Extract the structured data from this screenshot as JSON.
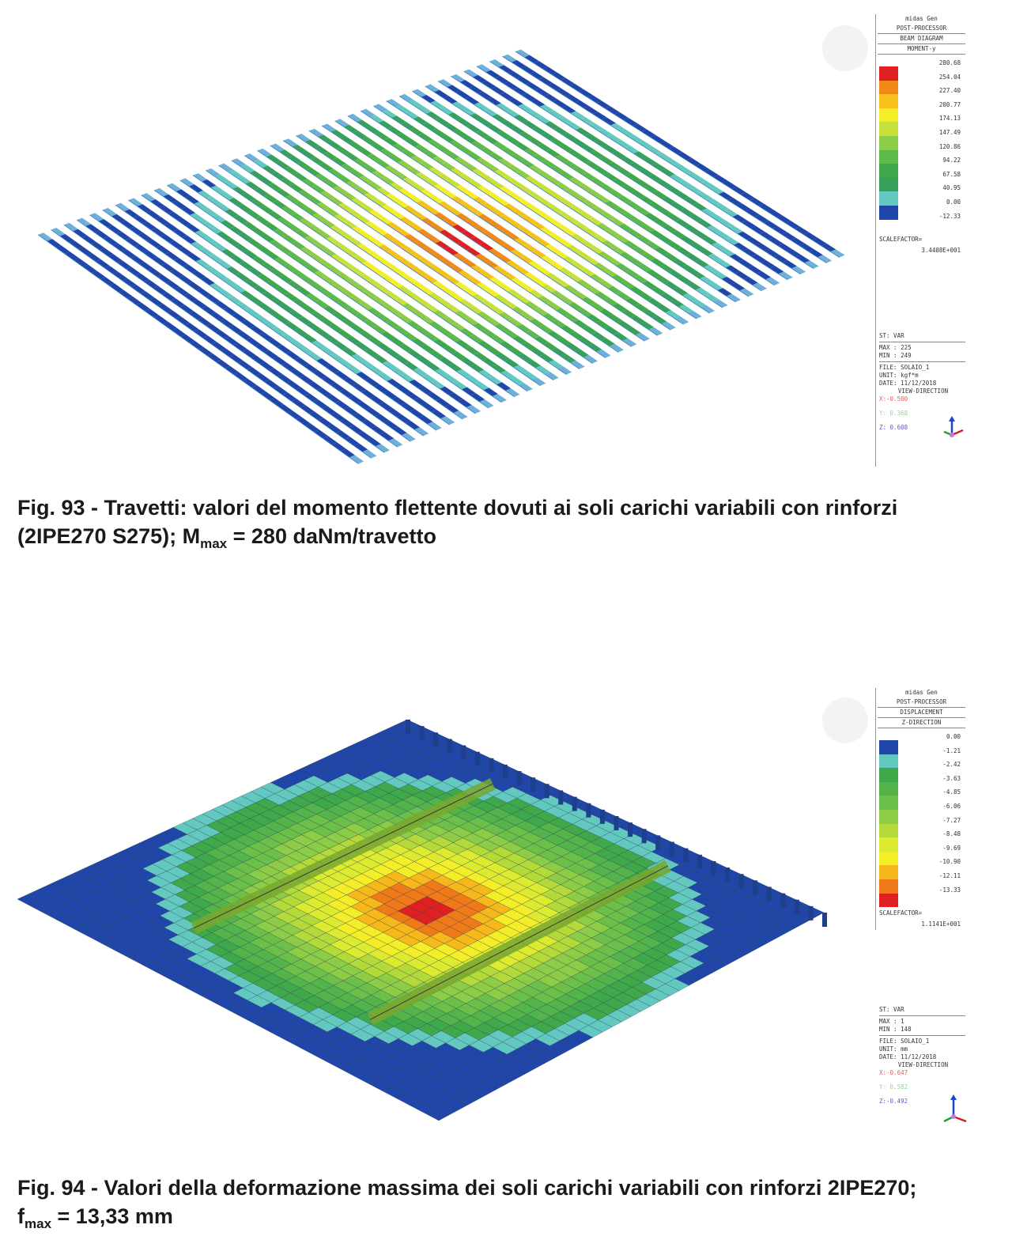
{
  "fig93": {
    "legend": {
      "program": "midas Gen",
      "module": "POST-PROCESSOR",
      "diagram": "BEAM DIAGRAM",
      "component": "MOMENT-y",
      "values": [
        "280.68",
        "254.04",
        "227.40",
        "200.77",
        "174.13",
        "147.49",
        "120.86",
        "94.22",
        "67.58",
        "40.95",
        "0.00",
        "-12.33"
      ],
      "colors": [
        "#e02020",
        "#f08a18",
        "#f6c21a",
        "#f4ee28",
        "#c8e03a",
        "#8ccc46",
        "#5cba48",
        "#3fa84a",
        "#37a05a",
        "#62c8c0",
        "#1f46a8"
      ],
      "scalefactor_label": "SCALEFACTOR=",
      "scalefactor_value": "3.4408E+001",
      "st": "ST: VAR",
      "max": "MAX : 225",
      "min": "MIN : 249",
      "file": "FILE: SOLAIO_1",
      "unit": "UNIT: kgf*m",
      "date": "DATE: 11/12/2018",
      "view_direction": "VIEW-DIRECTION",
      "vx": "X:-0.500",
      "vy": "Y: 0.368",
      "vz": "Z: 0.608"
    },
    "caption_line1": "Fig. 93 - Travetti: valori del momento flettente dovuti ai soli carichi variabili con rinforzi",
    "caption_line2_pre": "(2IPE270 S275); M",
    "caption_sub": "max",
    "caption_line2_post": " = 280 daNm/travetto"
  },
  "fig94": {
    "legend": {
      "program": "midas Gen",
      "module": "POST-PROCESSOR",
      "diagram": "DISPLACEMENT",
      "component": "Z-DIRECTION",
      "values": [
        "0.00",
        "-1.21",
        "-2.42",
        "-3.63",
        "-4.85",
        "-6.06",
        "-7.27",
        "-8.48",
        "-9.69",
        "-10.90",
        "-12.11",
        "-13.33"
      ],
      "colors": [
        "#1f46a8",
        "#62c8c0",
        "#3fa84a",
        "#52b44a",
        "#6cc04a",
        "#8ccc46",
        "#b4da3a",
        "#dcea30",
        "#f4ee28",
        "#f6b81a",
        "#f07a18",
        "#e02020"
      ],
      "scalefactor_label": "SCALEFACTOR=",
      "scalefactor_value": "1.1141E+001",
      "st": "ST: VAR",
      "max": "MAX : 1",
      "min": "MIN : 148",
      "file": "FILE: SOLAIO_1",
      "unit": "UNIT: mm",
      "date": "DATE: 11/12/2018",
      "view_direction": "VIEW-DIRECTION",
      "vx": "X:-0.647",
      "vy": "Y: 0.582",
      "vz": "Z:-0.492"
    },
    "caption_line1": "Fig. 94 - Valori della deformazione massima dei soli carichi variabili con rinforzi 2IPE270;",
    "caption_line2_pre": "f",
    "caption_sub": "max",
    "caption_line2_post": " = 13,33 mm"
  }
}
